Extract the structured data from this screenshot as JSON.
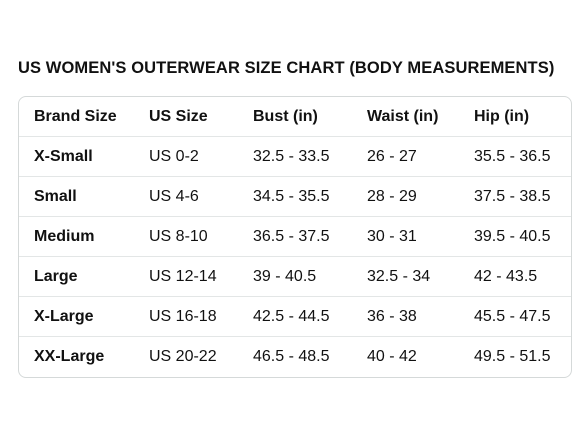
{
  "title": "US WOMEN'S OUTERWEAR SIZE CHART (BODY MEASUREMENTS)",
  "table": {
    "headers": [
      "Brand Size",
      "US Size",
      "Bust (in)",
      "Waist (in)",
      "Hip (in)"
    ],
    "rows": [
      [
        "X-Small",
        "US 0-2",
        "32.5 - 33.5",
        "26 - 27",
        "35.5 - 36.5"
      ],
      [
        "Small",
        "US 4-6",
        "34.5 - 35.5",
        "28 - 29",
        "37.5 - 38.5"
      ],
      [
        "Medium",
        "US 8-10",
        "36.5 - 37.5",
        "30 - 31",
        "39.5 - 40.5"
      ],
      [
        "Large",
        "US 12-14",
        "39 - 40.5",
        "32.5 - 34",
        "42 - 43.5"
      ],
      [
        "X-Large",
        "US 16-18",
        "42.5 - 44.5",
        "36 - 38",
        "45.5 - 47.5"
      ],
      [
        "XX-Large",
        "US 20-22",
        "46.5 - 48.5",
        "40 - 42",
        "49.5 - 51.5"
      ]
    ]
  }
}
